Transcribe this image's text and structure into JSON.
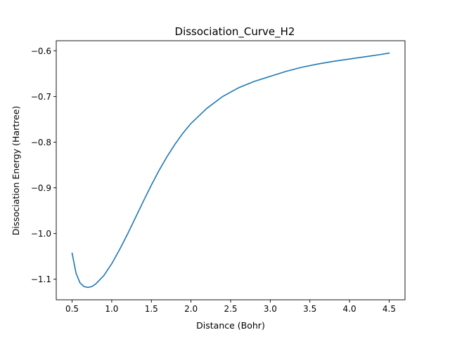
{
  "chart_data": {
    "type": "line",
    "title": "Dissociation_Curve_H2",
    "xlabel": "Distance (Bohr)",
    "ylabel": "Dissociation Energy (Hartree)",
    "xlim": [
      0.3,
      4.7
    ],
    "ylim": [
      -1.145,
      -0.578
    ],
    "xticks": [
      0.5,
      1.0,
      1.5,
      2.0,
      2.5,
      3.0,
      3.5,
      4.0,
      4.5
    ],
    "xtick_labels": [
      "0.5",
      "1.0",
      "1.5",
      "2.0",
      "2.5",
      "3.0",
      "3.5",
      "4.0",
      "4.5"
    ],
    "yticks": [
      -1.1,
      -1.0,
      -0.9,
      -0.8,
      -0.7,
      -0.6
    ],
    "ytick_labels": [
      "−1.1",
      "−1.0",
      "−0.9",
      "−0.8",
      "−0.7",
      "−0.6"
    ],
    "grid": false,
    "series": [
      {
        "color": "#1f77b4",
        "x": [
          0.5,
          0.55,
          0.6,
          0.65,
          0.7,
          0.75,
          0.8,
          0.9,
          1.0,
          1.1,
          1.2,
          1.3,
          1.4,
          1.5,
          1.6,
          1.7,
          1.8,
          1.9,
          2.0,
          2.2,
          2.4,
          2.6,
          2.8,
          3.0,
          3.2,
          3.4,
          3.6,
          3.8,
          4.0,
          4.2,
          4.4,
          4.5
        ],
        "y": [
          -1.043,
          -1.087,
          -1.108,
          -1.116,
          -1.118,
          -1.116,
          -1.11,
          -1.092,
          -1.066,
          -1.035,
          -1.001,
          -0.965,
          -0.929,
          -0.894,
          -0.861,
          -0.831,
          -0.804,
          -0.78,
          -0.759,
          -0.726,
          -0.7,
          -0.681,
          -0.667,
          -0.656,
          -0.645,
          -0.636,
          -0.629,
          -0.623,
          -0.618,
          -0.613,
          -0.608,
          -0.605
        ]
      }
    ]
  }
}
